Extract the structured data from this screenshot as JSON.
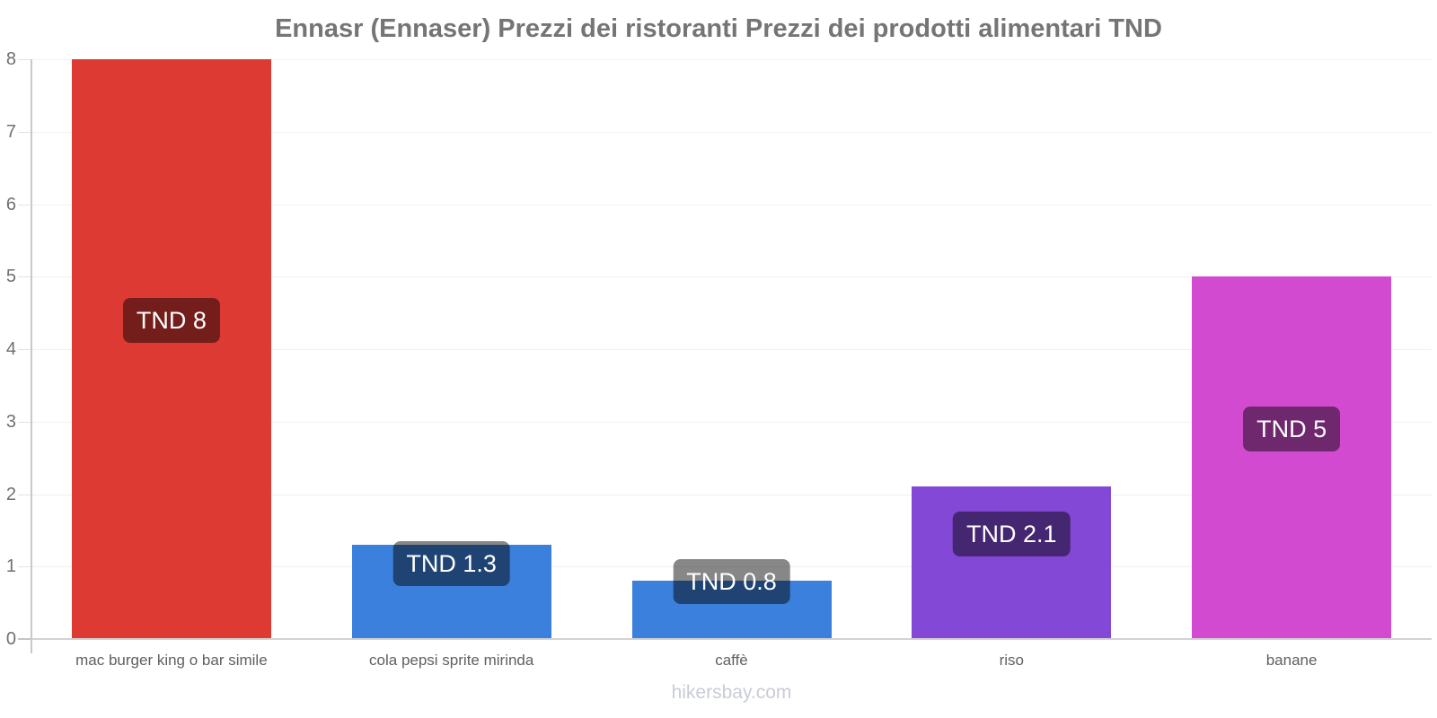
{
  "title": "Ennasr (Ennaser) Prezzi dei ristoranti Prezzi dei prodotti alimentari TND",
  "footer": "hikersbay.com",
  "colors": {
    "title_text": "#757575",
    "axis_line": "#c9c9c9",
    "baseline": "#d2d2d2",
    "gridline": "#f1f1f1",
    "tick_label": "#707070",
    "category_label": "#606060",
    "badge_background": "rgba(0,0,0,0.47)",
    "badge_text": "#ffffff",
    "footer_text": "#c9ccd6"
  },
  "chart_data": {
    "type": "bar",
    "title": "Ennasr (Ennaser) Prezzi dei ristoranti Prezzi dei prodotti alimentari TND",
    "categories": [
      "mac burger king o bar simile",
      "cola pepsi sprite mirinda",
      "caffè",
      "riso",
      "banane"
    ],
    "values": [
      8,
      1.3,
      0.8,
      2.1,
      5
    ],
    "data_labels": [
      "TND 8",
      "TND 1.3",
      "TND 0.8",
      "TND 2.1",
      "TND 5"
    ],
    "bar_colors": [
      "#dc3a33",
      "#3b80dc",
      "#3b80dc",
      "#8348d6",
      "#d24ad0"
    ],
    "currency": "TND",
    "xlabel": "",
    "ylabel": "",
    "ylim": [
      0,
      8
    ],
    "yticks": [
      0,
      1,
      2,
      3,
      4,
      5,
      6,
      7,
      8
    ],
    "grid": true,
    "legend": false,
    "watermark": "hikersbay.com"
  }
}
